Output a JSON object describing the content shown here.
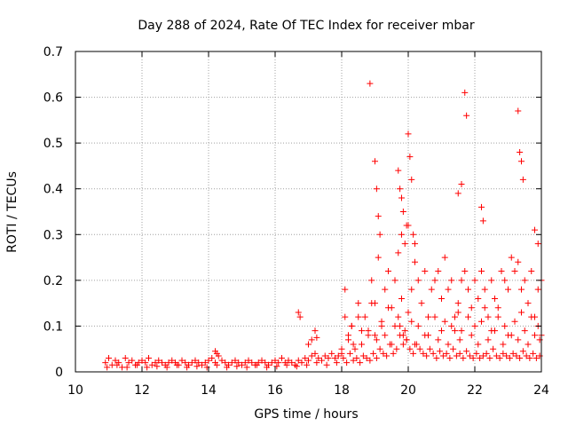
{
  "chart_data": {
    "type": "scatter",
    "title": "Day 288 of 2024, Rate Of TEC Index for receiver mbar",
    "xlabel": "GPS time / hours",
    "ylabel": "ROTI / TECUs",
    "xlim": [
      10,
      24
    ],
    "ylim": [
      0,
      0.7
    ],
    "x_ticks": [
      10,
      12,
      14,
      16,
      18,
      20,
      22,
      24
    ],
    "x_tick_labels": [
      "10",
      "12",
      "14",
      "16",
      "18",
      "20",
      "22",
      "24"
    ],
    "y_ticks": [
      0,
      0.1,
      0.2,
      0.3,
      0.4,
      0.5,
      0.6,
      0.7
    ],
    "y_tick_labels": [
      "0",
      "0.1",
      "0.2",
      "0.3",
      "0.4",
      "0.5",
      "0.6",
      "0.7"
    ],
    "grid": true,
    "marker": "+",
    "marker_color": "#ff0000",
    "series": [
      {
        "x": [
          10.9,
          11.0,
          11.1,
          11.2,
          11.3,
          11.4,
          11.5,
          11.6,
          11.7,
          11.8,
          11.9,
          12.0,
          12.1,
          12.2,
          12.3,
          12.4,
          12.5,
          12.6,
          12.7,
          12.8,
          12.9,
          13.0,
          13.1,
          13.2,
          13.3,
          13.4,
          13.5,
          13.6,
          13.7,
          13.8,
          13.9,
          14.0,
          14.1,
          14.2,
          14.3,
          14.4,
          14.5,
          14.6,
          14.7,
          14.8,
          14.9,
          15.0,
          15.1,
          15.2,
          15.3,
          15.4,
          15.5,
          15.6,
          15.7,
          15.8,
          15.9,
          16.0,
          16.1,
          16.2,
          16.3,
          16.4,
          16.5,
          16.6,
          16.7,
          16.8,
          16.9,
          17.0,
          17.1,
          17.2,
          17.3,
          17.4,
          17.5,
          17.6,
          17.7,
          17.8,
          17.9,
          18.0,
          10.95,
          11.25,
          11.55,
          11.85,
          12.15,
          12.45,
          12.75,
          13.05,
          13.35,
          13.65,
          13.95,
          14.25,
          14.55,
          14.85,
          15.15,
          15.45,
          15.75,
          16.05,
          16.35,
          16.65,
          16.95,
          17.25,
          17.55,
          17.85,
          14.2,
          14.25,
          16.7,
          16.75,
          17.1,
          17.2,
          17.25,
          17.0,
          18.0,
          18.1,
          18.2,
          18.3,
          18.4,
          18.5,
          18.6,
          18.7,
          18.8,
          18.9,
          19.0,
          19.1,
          19.2,
          19.3,
          19.4,
          19.5,
          19.6,
          19.7,
          19.8,
          19.9,
          20.0,
          20.1,
          20.2,
          20.3,
          20.4,
          20.5,
          20.6,
          20.7,
          20.8,
          20.9,
          21.0,
          21.1,
          21.2,
          21.3,
          21.4,
          21.5,
          21.6,
          21.7,
          21.8,
          21.9,
          22.0,
          22.1,
          22.2,
          22.3,
          22.4,
          22.5,
          22.6,
          22.7,
          22.8,
          22.9,
          23.0,
          23.1,
          23.2,
          23.3,
          23.4,
          23.5,
          23.6,
          23.7,
          23.8,
          23.9,
          24.0,
          18.05,
          18.15,
          18.25,
          18.35,
          18.45,
          18.55,
          18.65,
          18.75,
          18.85,
          18.95,
          19.05,
          19.15,
          19.25,
          19.35,
          19.45,
          19.55,
          19.65,
          19.75,
          19.85,
          19.95,
          20.05,
          20.15,
          20.25,
          20.35,
          20.45,
          20.55,
          20.65,
          20.75,
          20.85,
          20.95,
          21.05,
          21.15,
          21.25,
          21.35,
          21.45,
          21.55,
          21.65,
          21.75,
          21.85,
          21.95,
          22.05,
          22.15,
          22.25,
          22.35,
          22.45,
          22.55,
          22.65,
          22.75,
          22.85,
          22.95,
          23.05,
          23.15,
          23.25,
          23.35,
          23.45,
          23.55,
          23.65,
          23.75,
          23.85,
          23.95,
          18.1,
          18.3,
          18.5,
          18.6,
          18.9,
          19.0,
          19.2,
          19.4,
          19.6,
          19.7,
          19.8,
          19.9,
          20.0,
          20.1,
          20.3,
          20.5,
          20.8,
          21.0,
          21.1,
          21.3,
          21.5,
          21.6,
          21.8,
          22.0,
          22.2,
          22.3,
          22.5,
          22.7,
          22.9,
          23.0,
          23.2,
          23.4,
          23.5,
          23.7,
          23.9,
          24.0,
          18.2,
          18.35,
          18.8,
          19.05,
          19.3,
          19.5,
          19.75,
          19.85,
          19.95,
          20.2,
          20.6,
          20.9,
          21.2,
          21.4,
          21.55,
          21.9,
          22.1,
          22.4,
          22.6,
          22.85,
          23.1,
          23.3,
          23.6,
          23.8,
          23.95,
          18.85,
          19.0,
          19.05,
          19.1,
          19.15,
          19.7,
          19.75,
          19.8,
          19.85,
          19.95,
          20.0,
          20.05,
          20.1,
          20.15,
          20.2,
          21.5,
          21.6,
          21.7,
          21.75,
          22.2,
          22.25,
          23.3,
          23.35,
          23.4,
          23.45,
          23.8,
          23.9
        ],
        "y": [
          0.02,
          0.03,
          0.015,
          0.025,
          0.02,
          0.01,
          0.03,
          0.02,
          0.025,
          0.015,
          0.02,
          0.025,
          0.02,
          0.03,
          0.015,
          0.02,
          0.025,
          0.02,
          0.015,
          0.02,
          0.025,
          0.02,
          0.015,
          0.025,
          0.02,
          0.015,
          0.02,
          0.025,
          0.02,
          0.015,
          0.02,
          0.025,
          0.03,
          0.02,
          0.035,
          0.025,
          0.02,
          0.015,
          0.02,
          0.025,
          0.02,
          0.015,
          0.02,
          0.025,
          0.02,
          0.015,
          0.02,
          0.025,
          0.02,
          0.015,
          0.02,
          0.025,
          0.02,
          0.03,
          0.02,
          0.025,
          0.02,
          0.015,
          0.025,
          0.02,
          0.03,
          0.025,
          0.035,
          0.04,
          0.03,
          0.025,
          0.035,
          0.03,
          0.04,
          0.03,
          0.035,
          0.04,
          0.01,
          0.015,
          0.01,
          0.015,
          0.01,
          0.012,
          0.01,
          0.015,
          0.01,
          0.012,
          0.01,
          0.015,
          0.01,
          0.012,
          0.01,
          0.015,
          0.01,
          0.012,
          0.015,
          0.012,
          0.015,
          0.02,
          0.015,
          0.02,
          0.045,
          0.04,
          0.13,
          0.12,
          0.07,
          0.09,
          0.075,
          0.06,
          0.05,
          0.12,
          0.08,
          0.1,
          0.05,
          0.15,
          0.06,
          0.12,
          0.08,
          0.2,
          0.15,
          0.25,
          0.1,
          0.18,
          0.22,
          0.14,
          0.2,
          0.26,
          0.3,
          0.28,
          0.32,
          0.18,
          0.24,
          0.2,
          0.15,
          0.22,
          0.12,
          0.18,
          0.2,
          0.22,
          0.16,
          0.25,
          0.18,
          0.2,
          0.12,
          0.15,
          0.2,
          0.22,
          0.18,
          0.14,
          0.2,
          0.16,
          0.22,
          0.18,
          0.12,
          0.2,
          0.16,
          0.14,
          0.22,
          0.2,
          0.18,
          0.25,
          0.22,
          0.24,
          0.18,
          0.2,
          0.15,
          0.22,
          0.12,
          0.18,
          0.2,
          0.03,
          0.02,
          0.04,
          0.025,
          0.03,
          0.02,
          0.035,
          0.03,
          0.025,
          0.04,
          0.03,
          0.05,
          0.04,
          0.035,
          0.06,
          0.04,
          0.05,
          0.08,
          0.06,
          0.07,
          0.05,
          0.04,
          0.06,
          0.05,
          0.04,
          0.035,
          0.05,
          0.04,
          0.03,
          0.045,
          0.035,
          0.04,
          0.03,
          0.05,
          0.035,
          0.04,
          0.03,
          0.045,
          0.035,
          0.03,
          0.04,
          0.03,
          0.035,
          0.04,
          0.03,
          0.05,
          0.035,
          0.03,
          0.04,
          0.035,
          0.03,
          0.04,
          0.035,
          0.03,
          0.045,
          0.035,
          0.03,
          0.04,
          0.03,
          0.035,
          0.18,
          0.1,
          0.12,
          0.09,
          0.15,
          0.08,
          0.11,
          0.14,
          0.1,
          0.12,
          0.16,
          0.09,
          0.13,
          0.11,
          0.1,
          0.08,
          0.12,
          0.09,
          0.11,
          0.1,
          0.13,
          0.09,
          0.12,
          0.1,
          0.11,
          0.14,
          0.09,
          0.12,
          0.1,
          0.08,
          0.11,
          0.13,
          0.09,
          0.12,
          0.1,
          0.08,
          0.07,
          0.06,
          0.09,
          0.07,
          0.08,
          0.06,
          0.1,
          0.08,
          0.07,
          0.06,
          0.08,
          0.07,
          0.06,
          0.09,
          0.07,
          0.08,
          0.06,
          0.07,
          0.09,
          0.06,
          0.08,
          0.07,
          0.06,
          0.08,
          0.07,
          0.63,
          0.46,
          0.4,
          0.34,
          0.3,
          0.44,
          0.4,
          0.38,
          0.35,
          0.32,
          0.52,
          0.47,
          0.42,
          0.3,
          0.28,
          0.39,
          0.41,
          0.61,
          0.56,
          0.36,
          0.33,
          0.57,
          0.48,
          0.46,
          0.42,
          0.31,
          0.28
        ]
      }
    ]
  }
}
